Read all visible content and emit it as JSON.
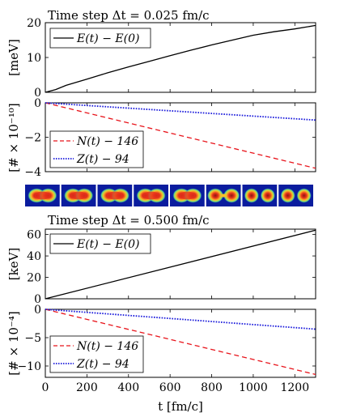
{
  "chart_data": [
    {
      "type": "line",
      "title": "Time step Δt = 0.025 fm/c",
      "ylabel": "[meV]",
      "xlim": [
        0,
        1300
      ],
      "ylim": [
        0,
        20
      ],
      "yticks": [
        0,
        10,
        20
      ],
      "xticks": [
        0,
        200,
        400,
        600,
        800,
        1000,
        1200
      ],
      "legend_position": "top-left",
      "series": [
        {
          "name": "E(t) − E(0)",
          "color": "#000000",
          "dash": "solid",
          "x": [
            0,
            50,
            100,
            200,
            300,
            400,
            500,
            600,
            700,
            800,
            900,
            1000,
            1100,
            1200,
            1300
          ],
          "y": [
            0,
            0.8,
            2.0,
            3.8,
            5.6,
            7.3,
            8.9,
            10.5,
            12.1,
            13.6,
            15.0,
            16.4,
            17.4,
            18.2,
            19.2
          ]
        }
      ]
    },
    {
      "type": "line",
      "ylabel": "[# × 10⁻¹⁰]",
      "xlim": [
        0,
        1300
      ],
      "ylim": [
        -4,
        0
      ],
      "yticks": [
        0,
        -2,
        -4
      ],
      "xticks": [
        0,
        200,
        400,
        600,
        800,
        1000,
        1200
      ],
      "legend_position": "bottom-left",
      "series": [
        {
          "name": "N(t) − 146",
          "color": "#e8141b",
          "dash": "dashed",
          "x": [
            0,
            1300
          ],
          "y": [
            0,
            -3.8
          ]
        },
        {
          "name": "Z(t) − 94",
          "color": "#1a1adb",
          "dash": "dotted",
          "x": [
            0,
            1300
          ],
          "y": [
            0,
            -1.0
          ]
        }
      ]
    },
    {
      "type": "line",
      "title": "Time step Δt = 0.500 fm/c",
      "ylabel": "[keV]",
      "xlim": [
        0,
        1300
      ],
      "ylim": [
        0,
        65
      ],
      "yticks": [
        0,
        20,
        40,
        60
      ],
      "xticks": [
        0,
        200,
        400,
        600,
        800,
        1000,
        1200
      ],
      "legend_position": "top-left",
      "series": [
        {
          "name": "E(t) − E(0)",
          "color": "#000000",
          "dash": "solid",
          "x": [
            0,
            1300
          ],
          "y": [
            0,
            64
          ]
        }
      ]
    },
    {
      "type": "line",
      "ylabel": "[# × 10⁻⁴]",
      "xlabel": "t [fm/c]",
      "xlim": [
        0,
        1300
      ],
      "ylim": [
        -12,
        0
      ],
      "yticks": [
        0,
        -5,
        -10
      ],
      "xticks": [
        0,
        200,
        400,
        600,
        800,
        1000,
        1200
      ],
      "legend_position": "bottom-left",
      "series": [
        {
          "name": "N(t) − 146",
          "color": "#e8141b",
          "dash": "dashed",
          "x": [
            0,
            1300
          ],
          "y": [
            0,
            -11.5
          ]
        },
        {
          "name": "Z(t) − 94",
          "color": "#1a1adb",
          "dash": "dotted",
          "x": [
            0,
            1300
          ],
          "y": [
            0,
            -3.5
          ]
        }
      ]
    }
  ],
  "snapshots": {
    "count": 8,
    "background": "#0a1c9e",
    "shapes": [
      "peanut",
      "peanut",
      "peanut",
      "peanut",
      "peanut",
      "neck",
      "split",
      "split"
    ]
  }
}
